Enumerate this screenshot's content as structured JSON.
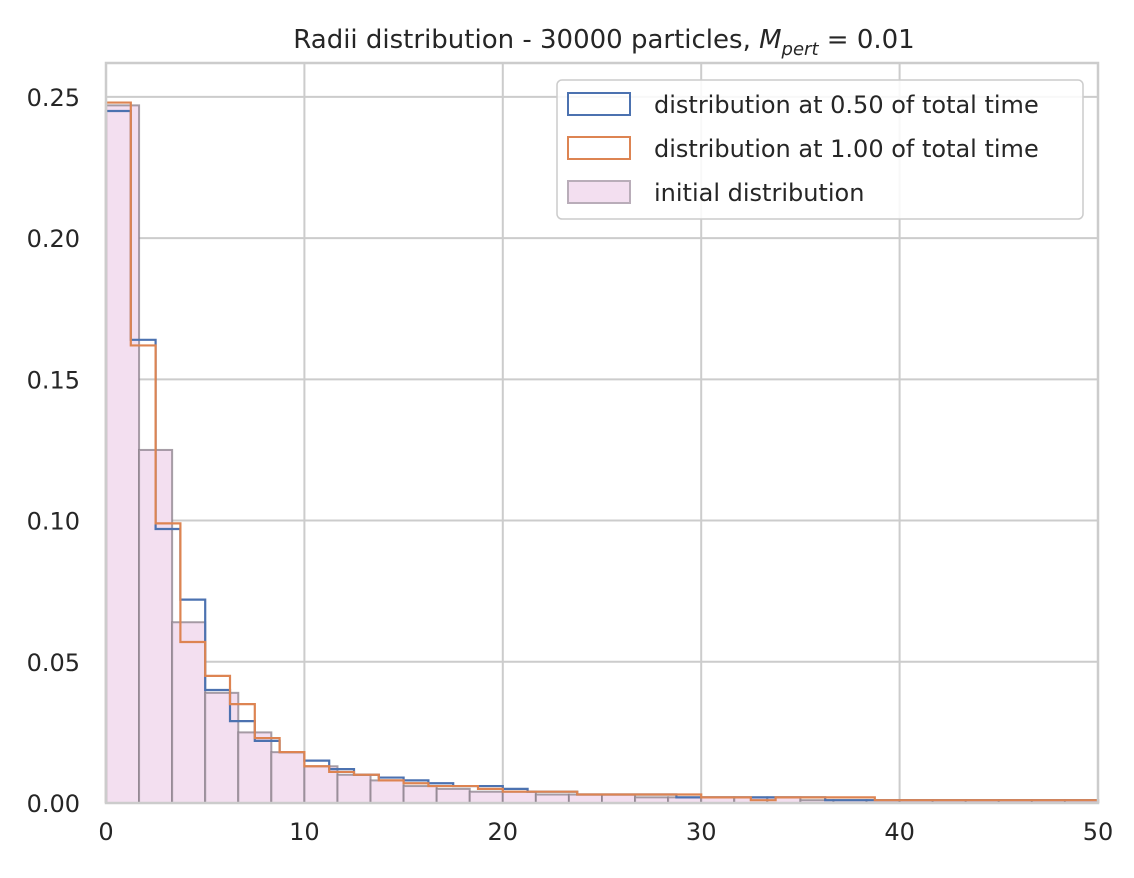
{
  "chart_data": {
    "type": "bar",
    "title_text": "Radii distribution - 30000 particles, ",
    "title_math_base": "M",
    "title_math_sub": "pert",
    "title_suffix": " = 0.01",
    "xlabel": "",
    "ylabel": "",
    "xlim": [
      0,
      50
    ],
    "ylim": [
      0,
      0.262
    ],
    "xticks": [
      0,
      10,
      20,
      30,
      40,
      50
    ],
    "xtick_labels": [
      "0",
      "10",
      "20",
      "30",
      "40",
      "50"
    ],
    "yticks": [
      0,
      0.05,
      0.1,
      0.15,
      0.2,
      0.25
    ],
    "ytick_labels": [
      "0.00",
      "0.05",
      "0.10",
      "0.15",
      "0.20",
      "0.25"
    ],
    "grid": true,
    "legend_position": "upper right",
    "bin_edges": [
      0,
      1.667,
      3.333,
      5.0,
      6.667,
      8.333,
      10.0,
      11.667,
      13.333,
      15.0,
      16.667,
      18.333,
      20.0,
      21.667,
      23.333,
      25.0,
      26.667,
      28.333,
      30.0,
      31.667,
      33.333,
      35.0,
      36.667,
      38.333,
      40.0,
      41.667,
      43.333,
      45.0,
      46.667,
      48.333,
      50.0
    ],
    "series": [
      {
        "name": "distribution at 0.50 of total time",
        "style": "step",
        "color": "#4c72b0",
        "bin_edges": [
          0,
          1.25,
          2.5,
          3.75,
          5.0,
          6.25,
          7.5,
          8.75,
          10.0,
          11.25,
          12.5,
          13.75,
          15.0,
          16.25,
          17.5,
          18.75,
          20.0,
          21.25,
          22.5,
          23.75,
          25.0,
          26.25,
          27.5,
          28.75,
          30.0,
          31.25,
          32.5,
          33.75,
          35.0,
          36.25,
          37.5,
          38.75,
          40.0,
          41.25,
          42.5,
          43.75,
          45.0,
          46.25,
          47.5,
          48.75,
          50.0
        ],
        "values": [
          0.245,
          0.164,
          0.097,
          0.072,
          0.04,
          0.029,
          0.022,
          0.018,
          0.015,
          0.012,
          0.01,
          0.009,
          0.008,
          0.007,
          0.006,
          0.006,
          0.005,
          0.004,
          0.004,
          0.003,
          0.003,
          0.003,
          0.003,
          0.002,
          0.002,
          0.002,
          0.002,
          0.002,
          0.002,
          0.001,
          0.001,
          0.001,
          0.001,
          0.001,
          0.001,
          0.001,
          0.001,
          0.001,
          0.001,
          0.001
        ]
      },
      {
        "name": "distribution at 1.00 of total time",
        "style": "step",
        "color": "#dd8452",
        "bin_edges": [
          0,
          1.25,
          2.5,
          3.75,
          5.0,
          6.25,
          7.5,
          8.75,
          10.0,
          11.25,
          12.5,
          13.75,
          15.0,
          16.25,
          17.5,
          18.75,
          20.0,
          21.25,
          22.5,
          23.75,
          25.0,
          26.25,
          27.5,
          28.75,
          30.0,
          31.25,
          32.5,
          33.75,
          35.0,
          36.25,
          37.5,
          38.75,
          40.0,
          41.25,
          42.5,
          43.75,
          45.0,
          46.25,
          47.5,
          48.75,
          50.0
        ],
        "values": [
          0.248,
          0.162,
          0.099,
          0.057,
          0.045,
          0.035,
          0.023,
          0.018,
          0.013,
          0.011,
          0.01,
          0.008,
          0.007,
          0.006,
          0.006,
          0.005,
          0.004,
          0.004,
          0.004,
          0.003,
          0.003,
          0.003,
          0.003,
          0.003,
          0.002,
          0.002,
          0.001,
          0.002,
          0.002,
          0.002,
          0.002,
          0.001,
          0.001,
          0.001,
          0.001,
          0.001,
          0.001,
          0.001,
          0.001,
          0.001
        ]
      },
      {
        "name": "initial distribution",
        "style": "bar",
        "fill_color": "#f3dff0",
        "edge_color": "#8a7f8a",
        "values": [
          0.247,
          0.125,
          0.064,
          0.039,
          0.025,
          0.018,
          0.013,
          0.01,
          0.008,
          0.006,
          0.005,
          0.004,
          0.004,
          0.003,
          0.003,
          0.003,
          0.002,
          0.002,
          0.002,
          0.002,
          0.002,
          0.001,
          0.001,
          0.001,
          0.001,
          0.001,
          0.001,
          0.001,
          0.001,
          0.001
        ]
      }
    ],
    "colors": {
      "background": "#ffffff",
      "grid": "#cccccc",
      "spine": "#cccccc",
      "text": "#262626"
    }
  }
}
